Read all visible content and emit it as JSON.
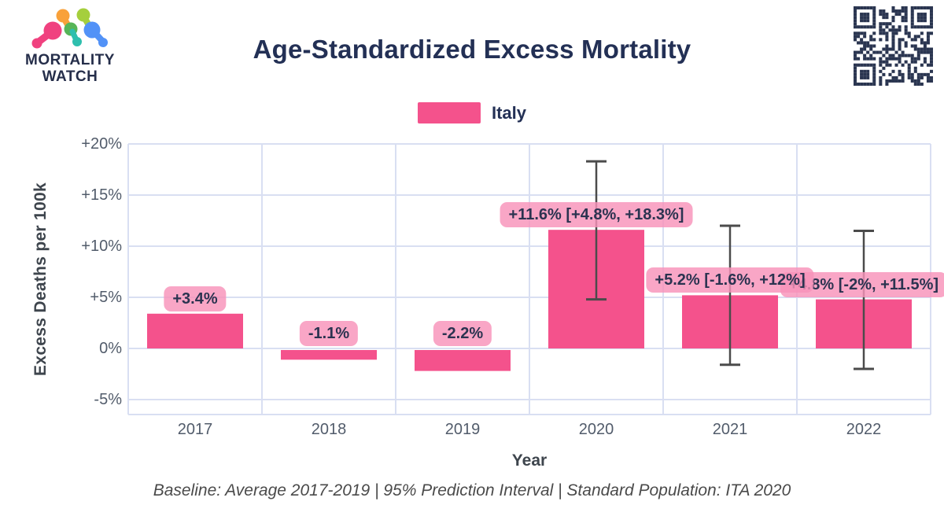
{
  "brand": {
    "line1": "MORTALITY",
    "line2": "WATCH"
  },
  "header": {
    "title": "Age-Standardized Excess Mortality"
  },
  "legend": [
    {
      "label": "Italy",
      "color": "#f4528c"
    }
  ],
  "chart_data": {
    "type": "bar",
    "title": "Age-Standardized Excess Mortality",
    "xlabel": "Year",
    "ylabel": "Excess Deaths per 100k",
    "categories": [
      "2017",
      "2018",
      "2019",
      "2020",
      "2021",
      "2022"
    ],
    "series": [
      {
        "name": "Italy",
        "color": "#f4528c",
        "values": [
          3.4,
          -1.1,
          -2.2,
          11.6,
          5.2,
          4.8
        ],
        "ci_low": [
          null,
          null,
          null,
          4.8,
          -1.6,
          -2
        ],
        "ci_high": [
          null,
          null,
          null,
          18.3,
          12,
          11.5
        ],
        "point_labels": [
          "+3.4%",
          "-1.1%",
          "-2.2%",
          "+11.6% [+4.8%, +18.3%]",
          "+5.2% [-1.6%, +12%]",
          "+4.8% [-2%, +11.5%]"
        ]
      }
    ],
    "yticks": [
      {
        "value": 20,
        "label": "+20%"
      },
      {
        "value": 15,
        "label": "+15%"
      },
      {
        "value": 10,
        "label": "+10%"
      },
      {
        "value": 5,
        "label": "+5%"
      },
      {
        "value": 0,
        "label": "0%"
      },
      {
        "value": -5,
        "label": "-5%"
      }
    ],
    "ylim": [
      -6.5,
      20
    ],
    "grid": true,
    "legend_position": "top"
  },
  "footer": {
    "note": "Baseline: Average 2017-2019 | 95% Prediction Interval | Standard Population: ITA 2020"
  },
  "colors": {
    "bar": "#f4528c",
    "pill_bg": "rgba(248,146,185,0.82)",
    "pill_text": "#2b3350",
    "grid": "#d9dff2",
    "whisker": "#4b4b4b",
    "qr": "#2a3550",
    "navy": "#233055",
    "tick_text": "#525c6b"
  }
}
